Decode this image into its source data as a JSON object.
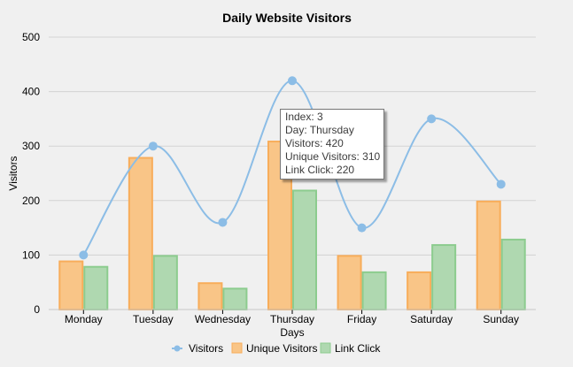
{
  "chart_data": {
    "type": "bar",
    "title": "Daily Website Visitors",
    "xlabel": "Days",
    "ylabel": "Visitors",
    "ylim": [
      0,
      500
    ],
    "yticks": [
      0,
      100,
      200,
      300,
      400,
      500
    ],
    "grid": true,
    "legend_position": "bottom",
    "categories": [
      "Monday",
      "Tuesday",
      "Wednesday",
      "Thursday",
      "Friday",
      "Saturday",
      "Sunday"
    ],
    "series": [
      {
        "name": "Visitors",
        "type": "spline",
        "color": "#8cbde6",
        "values": [
          100,
          300,
          160,
          420,
          150,
          350,
          230
        ]
      },
      {
        "name": "Unique Visitors",
        "type": "bar",
        "color": "#f9c587",
        "border": "#f8ad5a",
        "values": [
          90,
          280,
          50,
          310,
          100,
          70,
          200
        ]
      },
      {
        "name": "Link Click",
        "type": "bar",
        "color": "#afd8b0",
        "border": "#8ccc8e",
        "values": [
          80,
          100,
          40,
          220,
          70,
          120,
          130
        ]
      }
    ],
    "tooltip": {
      "lines": [
        "Index: 3",
        "Day: Thursday",
        "Visitors: 420",
        "Unique Visitors: 310",
        "Link Click: 220"
      ]
    }
  }
}
